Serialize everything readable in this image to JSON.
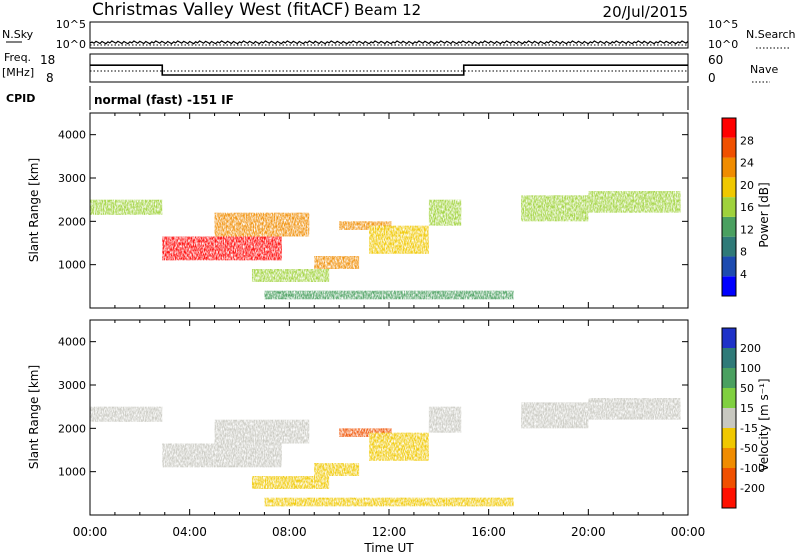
{
  "header": {
    "station": "Christmas Valley West (fitACF)",
    "beam": "Beam 12",
    "date": "20/Jul/2015"
  },
  "strip": {
    "nsky_label": "N.Sky",
    "nsky_scale_top": "10^5",
    "nsky_scale_bottom": "10^0",
    "nsearch_scale_top": "10^5",
    "nsearch_scale_bottom": "10^0",
    "nsearch_label": "N.Search",
    "freq_label_1": "Freq.",
    "freq_label_2": "[MHz]",
    "freq_tick_top": "18",
    "freq_tick_bottom": "8",
    "nave_tick_top": "60",
    "nave_tick_bottom": "0",
    "nave_label": "Nave",
    "cpid_label": "CPID",
    "cpid_value": "normal (fast) -151 IF"
  },
  "axes": {
    "ylabel": "Slant Range [km]",
    "xlabel": "Time UT",
    "yticks": [
      "1000",
      "2000",
      "3000",
      "4000"
    ],
    "xticks": [
      "00:00",
      "04:00",
      "08:00",
      "12:00",
      "16:00",
      "20:00",
      "00:00"
    ]
  },
  "colorbars": {
    "power": {
      "label": "Power [dB]",
      "ticks": [
        "4",
        "8",
        "12",
        "16",
        "20",
        "24",
        "28"
      ],
      "colors": [
        "#0000ff",
        "#1d4bb0",
        "#2f7a78",
        "#4aa060",
        "#9fd23c",
        "#f0c800",
        "#f08c00",
        "#f05000",
        "#ff0000"
      ]
    },
    "velocity": {
      "label": "Velocity [m s⁻¹]",
      "ticks": [
        "200",
        "100",
        "50",
        "15",
        "-15",
        "-50",
        "-100",
        "-200"
      ],
      "colors": [
        "#1e32c8",
        "#2f7a78",
        "#4aa060",
        "#80d040",
        "#c8c8c0",
        "#f0c800",
        "#f08c00",
        "#f05000",
        "#ff1000"
      ]
    }
  },
  "chart_data": {
    "type": "heatmap",
    "x_unit": "hours UT",
    "x_range": [
      0,
      24
    ],
    "y_range": [
      0,
      4500
    ],
    "power_range_db": [
      0,
      30
    ],
    "velocity_range": [
      -250,
      250
    ],
    "frequency_mhz": [
      [
        0,
        2.9,
        14
      ],
      [
        2.9,
        15,
        10.5
      ],
      [
        15,
        24,
        14
      ]
    ],
    "echo_regions": [
      {
        "t": [
          0,
          2.9
        ],
        "r0": 2150,
        "r1": 2500,
        "power": 16,
        "velocity": 0
      },
      {
        "t": [
          2.9,
          7.7
        ],
        "r0": 1100,
        "r1": 1650,
        "power": 28,
        "velocity": 0
      },
      {
        "t": [
          5.0,
          8.8
        ],
        "r0": 1650,
        "r1": 2200,
        "power": 20,
        "velocity": 0
      },
      {
        "t": [
          6.5,
          9.6
        ],
        "r0": 600,
        "r1": 900,
        "power": 16,
        "velocity": -60
      },
      {
        "t": [
          9.0,
          10.8
        ],
        "r0": 900,
        "r1": 1200,
        "power": 22,
        "velocity": -70
      },
      {
        "t": [
          10.0,
          12.1
        ],
        "r0": 1800,
        "r1": 2000,
        "power": 20,
        "velocity": -180
      },
      {
        "t": [
          11.2,
          13.6
        ],
        "r0": 1250,
        "r1": 1900,
        "power": 18,
        "velocity": -60
      },
      {
        "t": [
          13.6,
          14.9
        ],
        "r0": 1900,
        "r1": 2500,
        "power": 16,
        "velocity": 0
      },
      {
        "t": [
          17.3,
          20.0
        ],
        "r0": 2000,
        "r1": 2600,
        "power": 14,
        "velocity": 0
      },
      {
        "t": [
          20.0,
          23.7
        ],
        "r0": 2200,
        "r1": 2700,
        "power": 16,
        "velocity": 0
      },
      {
        "t": [
          7.0,
          17.0
        ],
        "r0": 200,
        "r1": 400,
        "power": 10,
        "velocity": -50
      }
    ]
  }
}
